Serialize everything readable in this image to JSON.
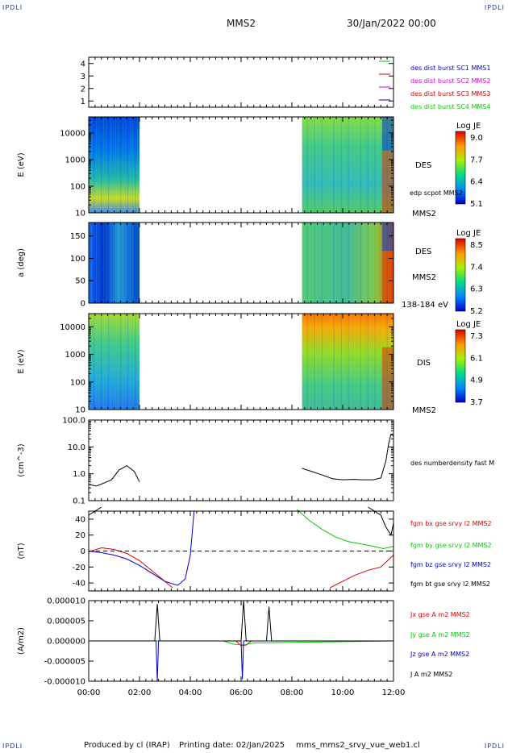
{
  "corners": {
    "tl": "IPDLI",
    "tr": "IPDLI",
    "bl": "IPDLI",
    "br": "IPDLI"
  },
  "header": {
    "center": "MMS2",
    "date": "30/Jan/2022 00:00"
  },
  "footer": {
    "produced": "Produced by cl (IRAP)",
    "printing": "Printing date: 02/Jan/2025",
    "file": "mms_mms2_srvy_vue_web1.cl"
  },
  "colors": {
    "black": "#000000",
    "red": "#dd0000",
    "green": "#00cc00",
    "blue": "#0000cc",
    "magenta": "#dd00dd"
  },
  "chart_data": [
    {
      "type": "line",
      "ylim": [
        0.5,
        4.5
      ],
      "yticks": [
        "1",
        "2",
        "3",
        "4"
      ],
      "legend": [
        {
          "label": "des dist burst SC1 MMS1",
          "color": "#0000cc"
        },
        {
          "label": "des dist burst SC2 MMS2",
          "color": "#dd00dd"
        },
        {
          "label": "des dist burst SC3 MMS3",
          "color": "#dd0000"
        },
        {
          "label": "des dist burst SC4 MMS4",
          "color": "#00cc00"
        }
      ]
    },
    {
      "type": "heatmap",
      "ylabel": "E (eV)",
      "scale": "log",
      "ylim": [
        10,
        40000
      ],
      "yticks": [
        "10",
        "100",
        "1000",
        "10000"
      ],
      "data_intervals_hours": [
        [
          0,
          2.0
        ],
        [
          8.4,
          12.0
        ]
      ],
      "labels": [
        "DES",
        "edp scpot MMS2",
        "MMS2"
      ],
      "colorbar": {
        "title": "Log JE",
        "ticks": [
          "9.0",
          "7.7",
          "6.4",
          "5.1"
        ]
      }
    },
    {
      "type": "heatmap",
      "ylabel": "a (deg)",
      "ylim": [
        0,
        180
      ],
      "yticks": [
        "0",
        "50",
        "100",
        "150"
      ],
      "data_intervals_hours": [
        [
          0,
          2.0
        ],
        [
          8.4,
          12.0
        ]
      ],
      "labels": [
        "DES",
        "MMS2",
        "138-184 eV"
      ],
      "colorbar": {
        "title": "Log JE",
        "ticks": [
          "8.5",
          "7.4",
          "6.3",
          "5.2"
        ]
      }
    },
    {
      "type": "heatmap",
      "ylabel": "E (eV)",
      "scale": "log",
      "ylim": [
        10,
        30000
      ],
      "yticks": [
        "10",
        "100",
        "1000",
        "10000"
      ],
      "data_intervals_hours": [
        [
          0,
          2.0
        ],
        [
          8.4,
          12.0
        ]
      ],
      "labels": [
        "DIS",
        "MMS2"
      ],
      "colorbar": {
        "title": "Log JE",
        "ticks": [
          "7.3",
          "6.1",
          "4.9",
          "3.7"
        ]
      }
    },
    {
      "type": "line",
      "ylabel": "(cm^-3)",
      "scale": "log",
      "ylim": [
        0.1,
        100
      ],
      "yticks": [
        "0.1",
        "1.0",
        "10.0",
        "100.0"
      ],
      "series": [
        {
          "name": "des numberdensity fast M",
          "color": "#000000",
          "x": [
            0.0,
            0.3,
            0.6,
            0.9,
            1.2,
            1.5,
            1.8,
            2.0,
            8.4,
            8.8,
            9.2,
            9.6,
            10.0,
            10.4,
            10.8,
            11.2,
            11.5,
            11.7,
            11.8,
            11.9,
            12.0
          ],
          "y": [
            0.4,
            0.35,
            0.45,
            0.6,
            1.4,
            2.0,
            1.2,
            0.5,
            1.6,
            1.2,
            0.9,
            0.65,
            0.6,
            0.62,
            0.6,
            0.6,
            0.7,
            3.0,
            12.0,
            30.0,
            25.0
          ]
        }
      ]
    },
    {
      "type": "line",
      "ylabel": "(nT)",
      "ylim": [
        -50,
        50
      ],
      "yticks": [
        "-40",
        "-20",
        "0",
        "20",
        "40"
      ],
      "series": [
        {
          "name": "fgm bx gse srvy l2 MMS2",
          "color": "#dd0000",
          "x": [
            0.0,
            0.5,
            1.0,
            1.5,
            2.0,
            2.5,
            3.0,
            3.3,
            9.5,
            10.0,
            10.5,
            11.0,
            11.5,
            12.0
          ],
          "y": [
            -1,
            4,
            2,
            -3,
            -12,
            -25,
            -38,
            -46,
            -46,
            -38,
            -30,
            -24,
            -20,
            -5
          ]
        },
        {
          "name": "fgm by gse srvy l2 MMS2",
          "color": "#00cc00",
          "x": [
            8.2,
            8.7,
            9.2,
            9.7,
            10.2,
            10.7,
            11.2,
            11.6,
            12.0
          ],
          "y": [
            52,
            38,
            27,
            18,
            12,
            9,
            6,
            3,
            6
          ]
        },
        {
          "name": "fgm bz gse srvy l2 MMS2",
          "color": "#0000cc",
          "x": [
            0.0,
            0.5,
            1.0,
            1.5,
            2.0,
            2.5,
            3.0,
            3.5,
            3.8,
            4.0,
            4.15
          ],
          "y": [
            0,
            -2,
            -5,
            -10,
            -18,
            -28,
            -38,
            -43,
            -35,
            -5,
            50
          ]
        },
        {
          "name": "fgm bt gse srvy l2 MMS2",
          "color": "#000000",
          "x": [
            0.0,
            0.5,
            11.0,
            11.5,
            11.7,
            11.9,
            12.0
          ],
          "y": [
            45,
            55,
            55,
            45,
            30,
            20,
            35
          ]
        }
      ]
    },
    {
      "type": "line",
      "ylabel": "(A/m2)",
      "ylim": [
        -1e-05,
        1e-05
      ],
      "yticks": [
        "-0.000010",
        "-0.000005",
        "0.000000",
        "0.000005",
        "0.000010"
      ],
      "series": [
        {
          "name": "Jx gse A m2 MMS2",
          "color": "#dd0000",
          "x": [
            0.0,
            5.8,
            6.0,
            6.2,
            6.4,
            12.0
          ],
          "y": [
            0,
            0,
            -1.2e-06,
            -1e-06,
            0,
            0
          ]
        },
        {
          "name": "Jy gse A m2 MMS2",
          "color": "#00cc00",
          "x": [
            0.0,
            5.3,
            5.7,
            6.1,
            6.5,
            12.0
          ],
          "y": [
            0,
            0,
            -8e-07,
            -1e-06,
            -5e-07,
            0
          ]
        },
        {
          "name": "Jz gse A m2 MMS2",
          "color": "#0000cc",
          "x": [
            0.0,
            2.65,
            2.7,
            2.75,
            6.0,
            6.05,
            6.1,
            12.0
          ],
          "y": [
            0,
            0,
            -1e-05,
            0,
            0,
            -9.5e-06,
            0,
            0
          ]
        },
        {
          "name": "J A m2 MMS2",
          "color": "#000000",
          "x": [
            0.0,
            2.6,
            2.7,
            2.8,
            6.0,
            6.1,
            6.2,
            7.0,
            7.1,
            7.2,
            12.0
          ],
          "y": [
            0,
            0,
            9.2e-06,
            0,
            0,
            1e-05,
            0,
            0,
            8.5e-06,
            0,
            0
          ]
        }
      ]
    }
  ],
  "xaxis": {
    "ticks": [
      "00:00",
      "02:00",
      "04:00",
      "06:00",
      "08:00",
      "10:00",
      "12:00"
    ],
    "range_hours": [
      0,
      12
    ]
  }
}
